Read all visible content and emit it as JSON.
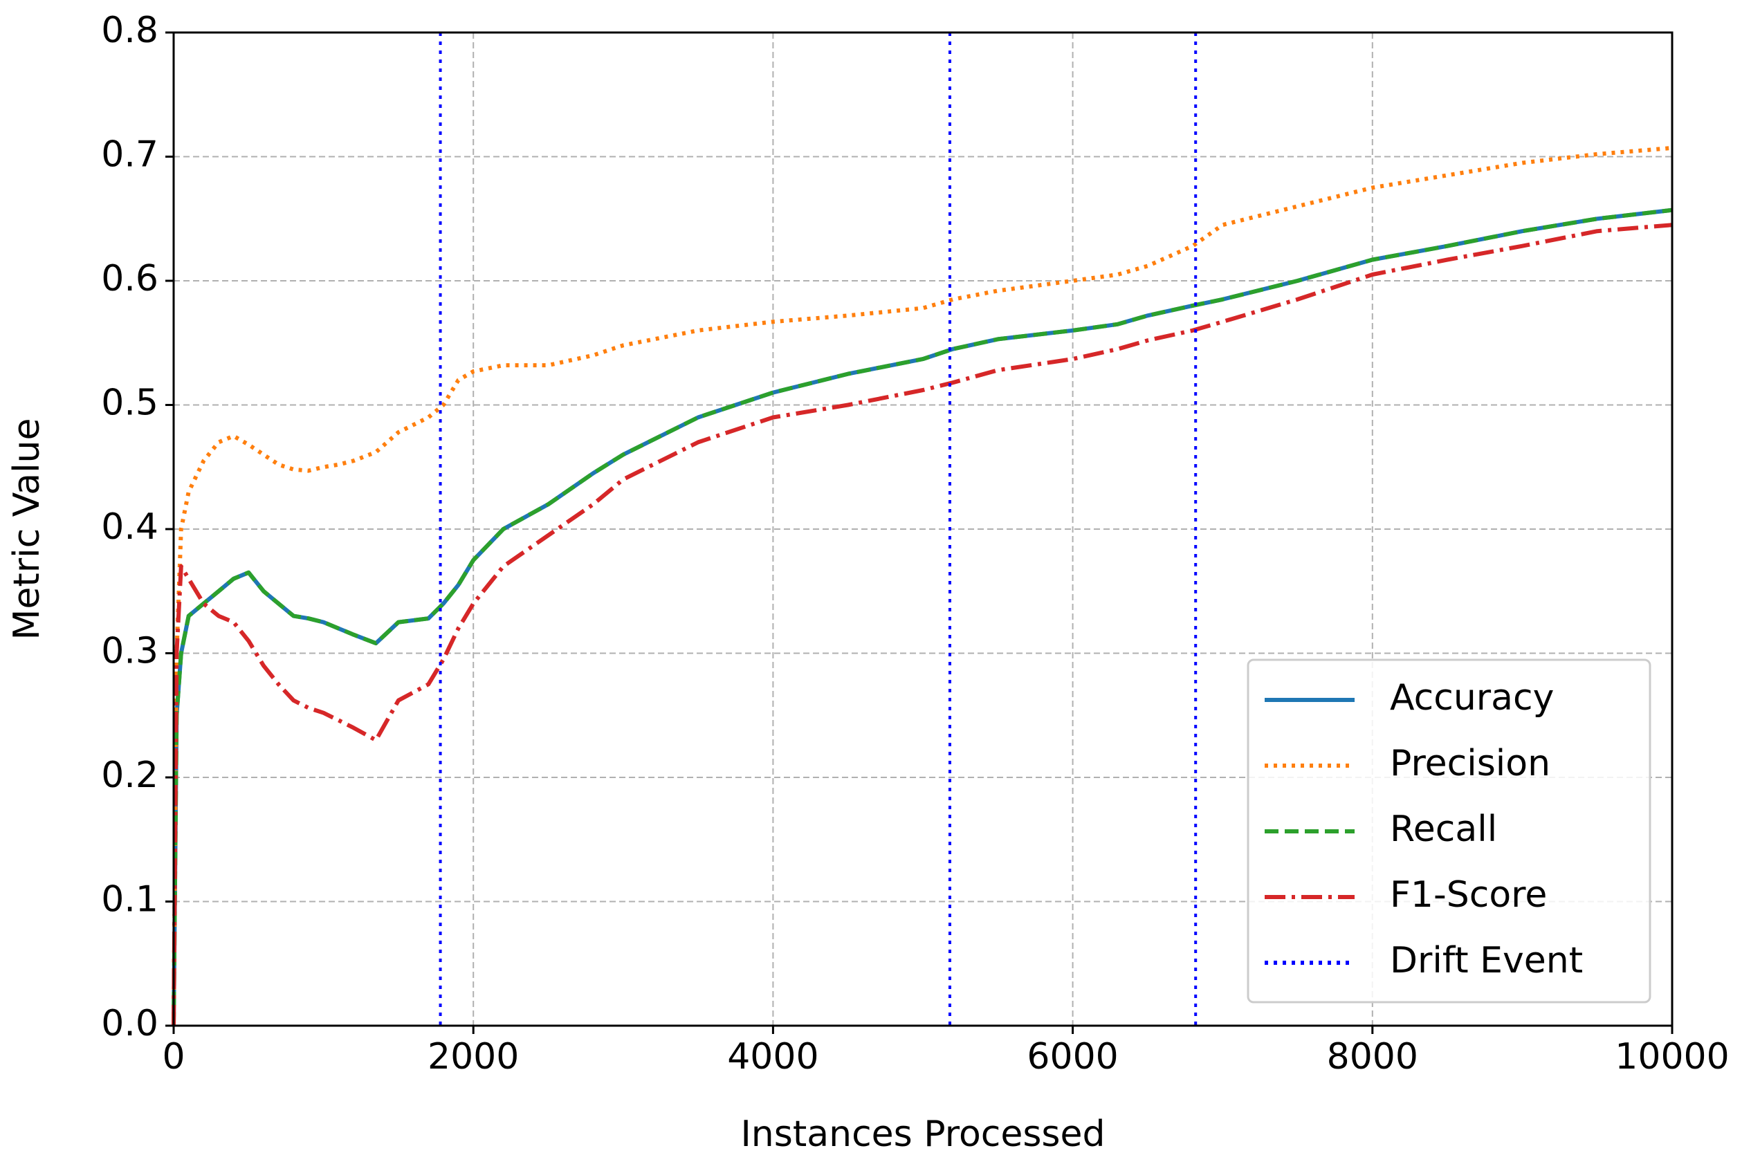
{
  "chart_data": {
    "type": "line",
    "xlabel": "Instances Processed",
    "ylabel": "Metric Value",
    "x": [
      0,
      20,
      50,
      100,
      200,
      300,
      400,
      500,
      600,
      700,
      800,
      900,
      1000,
      1100,
      1200,
      1350,
      1500,
      1700,
      1800,
      1900,
      2000,
      2200,
      2500,
      2800,
      3000,
      3500,
      4000,
      4500,
      5000,
      5200,
      5500,
      6000,
      6300,
      6500,
      6800,
      7000,
      7500,
      8000,
      8500,
      9000,
      9500,
      10000
    ],
    "series": [
      {
        "name": "Accuracy",
        "color": "#1f77b4",
        "dash": "solid",
        "values": [
          0,
          0.25,
          0.3,
          0.33,
          0.34,
          0.35,
          0.36,
          0.365,
          0.35,
          0.34,
          0.33,
          0.328,
          0.325,
          0.32,
          0.315,
          0.308,
          0.325,
          0.328,
          0.34,
          0.355,
          0.375,
          0.4,
          0.42,
          0.445,
          0.46,
          0.49,
          0.51,
          0.525,
          0.537,
          0.545,
          0.553,
          0.56,
          0.565,
          0.572,
          0.58,
          0.585,
          0.6,
          0.617,
          0.628,
          0.64,
          0.65,
          0.657
        ]
      },
      {
        "name": "Precision",
        "color": "#ff7f0e",
        "dash": "dotted",
        "values": [
          0,
          0.3,
          0.4,
          0.43,
          0.455,
          0.47,
          0.475,
          0.468,
          0.46,
          0.452,
          0.448,
          0.447,
          0.45,
          0.452,
          0.455,
          0.462,
          0.478,
          0.49,
          0.5,
          0.52,
          0.527,
          0.532,
          0.532,
          0.54,
          0.548,
          0.56,
          0.567,
          0.572,
          0.578,
          0.585,
          0.592,
          0.6,
          0.605,
          0.612,
          0.628,
          0.645,
          0.66,
          0.675,
          0.685,
          0.695,
          0.702,
          0.707
        ]
      },
      {
        "name": "Recall",
        "color": "#2ca02c",
        "dash": "dashed",
        "values": [
          0,
          0.25,
          0.3,
          0.33,
          0.34,
          0.35,
          0.36,
          0.365,
          0.35,
          0.34,
          0.33,
          0.328,
          0.325,
          0.32,
          0.315,
          0.308,
          0.325,
          0.328,
          0.34,
          0.355,
          0.375,
          0.4,
          0.42,
          0.445,
          0.46,
          0.49,
          0.51,
          0.525,
          0.537,
          0.545,
          0.553,
          0.56,
          0.565,
          0.572,
          0.58,
          0.585,
          0.6,
          0.617,
          0.628,
          0.64,
          0.65,
          0.657
        ]
      },
      {
        "name": "F1-Score",
        "color": "#d62728",
        "dash": "dashdot",
        "values": [
          0,
          0.3,
          0.37,
          0.36,
          0.34,
          0.33,
          0.325,
          0.31,
          0.29,
          0.275,
          0.262,
          0.256,
          0.252,
          0.246,
          0.24,
          0.23,
          0.262,
          0.275,
          0.295,
          0.32,
          0.34,
          0.37,
          0.395,
          0.42,
          0.44,
          0.47,
          0.49,
          0.5,
          0.512,
          0.518,
          0.528,
          0.537,
          0.545,
          0.552,
          0.56,
          0.567,
          0.585,
          0.605,
          0.617,
          0.628,
          0.64,
          0.645
        ]
      }
    ],
    "drift_events": {
      "name": "Drift Event",
      "color": "#0000ff",
      "dash": "dotted",
      "x": [
        1780,
        5180,
        6820
      ]
    },
    "xlim": [
      0,
      10000
    ],
    "xticks": [
      0,
      2000,
      4000,
      6000,
      8000,
      10000
    ],
    "ylim": [
      0,
      0.8
    ],
    "yticks": [
      {
        "value": 0,
        "label": "0.0"
      },
      0.1,
      0.2,
      0.3,
      0.4,
      0.5,
      0.6,
      0.7,
      0.8
    ],
    "grid": true,
    "legend": "lower right"
  }
}
